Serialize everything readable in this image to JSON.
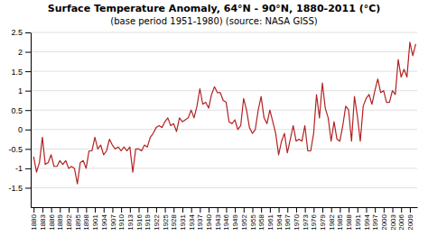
{
  "chart_data": {
    "type": "line",
    "title": "Surface Temperature Anomaly, 64°N - 90°N, 1880-2011 (°C)",
    "subtitle": "(base period 1951-1980) (source: NASA GISS)",
    "x": [
      1880,
      1881,
      1882,
      1883,
      1884,
      1885,
      1886,
      1887,
      1888,
      1889,
      1890,
      1891,
      1892,
      1893,
      1894,
      1895,
      1896,
      1897,
      1898,
      1899,
      1900,
      1901,
      1902,
      1903,
      1904,
      1905,
      1906,
      1907,
      1908,
      1909,
      1910,
      1911,
      1912,
      1913,
      1914,
      1915,
      1916,
      1917,
      1918,
      1919,
      1920,
      1921,
      1922,
      1923,
      1924,
      1925,
      1926,
      1927,
      1928,
      1929,
      1930,
      1931,
      1932,
      1933,
      1934,
      1935,
      1936,
      1937,
      1938,
      1939,
      1940,
      1941,
      1942,
      1943,
      1944,
      1945,
      1946,
      1947,
      1948,
      1949,
      1950,
      1951,
      1952,
      1953,
      1954,
      1955,
      1956,
      1957,
      1958,
      1959,
      1960,
      1961,
      1962,
      1963,
      1964,
      1965,
      1966,
      1967,
      1968,
      1969,
      1970,
      1971,
      1972,
      1973,
      1974,
      1975,
      1976,
      1977,
      1978,
      1979,
      1980,
      1981,
      1982,
      1983,
      1984,
      1985,
      1986,
      1987,
      1988,
      1989,
      1990,
      1991,
      1992,
      1993,
      1994,
      1995,
      1996,
      1997,
      1998,
      1999,
      2000,
      2001,
      2002,
      2003,
      2004,
      2005,
      2006,
      2007,
      2008,
      2009,
      2010,
      2011
    ],
    "values": [
      -0.7,
      -1.1,
      -0.85,
      -0.2,
      -0.9,
      -0.85,
      -0.65,
      -0.95,
      -0.95,
      -0.8,
      -0.9,
      -0.8,
      -1.0,
      -0.95,
      -1.0,
      -1.4,
      -0.85,
      -0.8,
      -1.0,
      -0.55,
      -0.55,
      -0.2,
      -0.5,
      -0.4,
      -0.65,
      -0.55,
      -0.25,
      -0.4,
      -0.5,
      -0.45,
      -0.55,
      -0.45,
      -0.55,
      -0.45,
      -1.1,
      -0.5,
      -0.5,
      -0.55,
      -0.4,
      -0.45,
      -0.2,
      -0.1,
      0.05,
      0.1,
      0.05,
      0.2,
      0.3,
      0.1,
      0.15,
      -0.05,
      0.3,
      0.2,
      0.25,
      0.3,
      0.5,
      0.3,
      0.6,
      1.05,
      0.65,
      0.7,
      0.55,
      0.9,
      1.1,
      0.95,
      0.95,
      0.75,
      0.7,
      0.2,
      0.15,
      0.25,
      0.0,
      0.1,
      0.8,
      0.5,
      0.05,
      -0.1,
      0.0,
      0.5,
      0.85,
      0.3,
      0.15,
      0.5,
      0.2,
      -0.1,
      -0.65,
      -0.3,
      -0.1,
      -0.6,
      -0.25,
      0.1,
      -0.3,
      -0.25,
      -0.3,
      0.1,
      -0.55,
      -0.55,
      -0.1,
      0.9,
      0.3,
      1.2,
      0.55,
      0.3,
      -0.3,
      0.2,
      -0.25,
      -0.3,
      0.1,
      0.6,
      0.5,
      -0.3,
      0.85,
      0.35,
      -0.3,
      0.6,
      0.8,
      0.9,
      0.65,
      1.0,
      1.3,
      0.95,
      1.0,
      0.7,
      0.7,
      1.0,
      0.9,
      1.8,
      1.35,
      1.55,
      1.35,
      2.25,
      1.9,
      2.2
    ],
    "color": "#b22222",
    "xlim": [
      1879,
      2011.5
    ],
    "xticks": [
      1880,
      1883,
      1886,
      1889,
      1892,
      1895,
      1898,
      1901,
      1904,
      1907,
      1910,
      1913,
      1916,
      1919,
      1922,
      1925,
      1928,
      1931,
      1934,
      1937,
      1940,
      1943,
      1946,
      1949,
      1952,
      1955,
      1958,
      1961,
      1964,
      1967,
      1970,
      1973,
      1976,
      1979,
      1982,
      1985,
      1988,
      1991,
      1994,
      1997,
      2000,
      2003,
      2006,
      2009
    ],
    "ylim": [
      -2,
      2.5
    ],
    "yticks": [
      -1.5,
      -1,
      -0.5,
      0,
      0.5,
      1,
      1.5,
      2,
      2.5
    ],
    "grid": true
  }
}
